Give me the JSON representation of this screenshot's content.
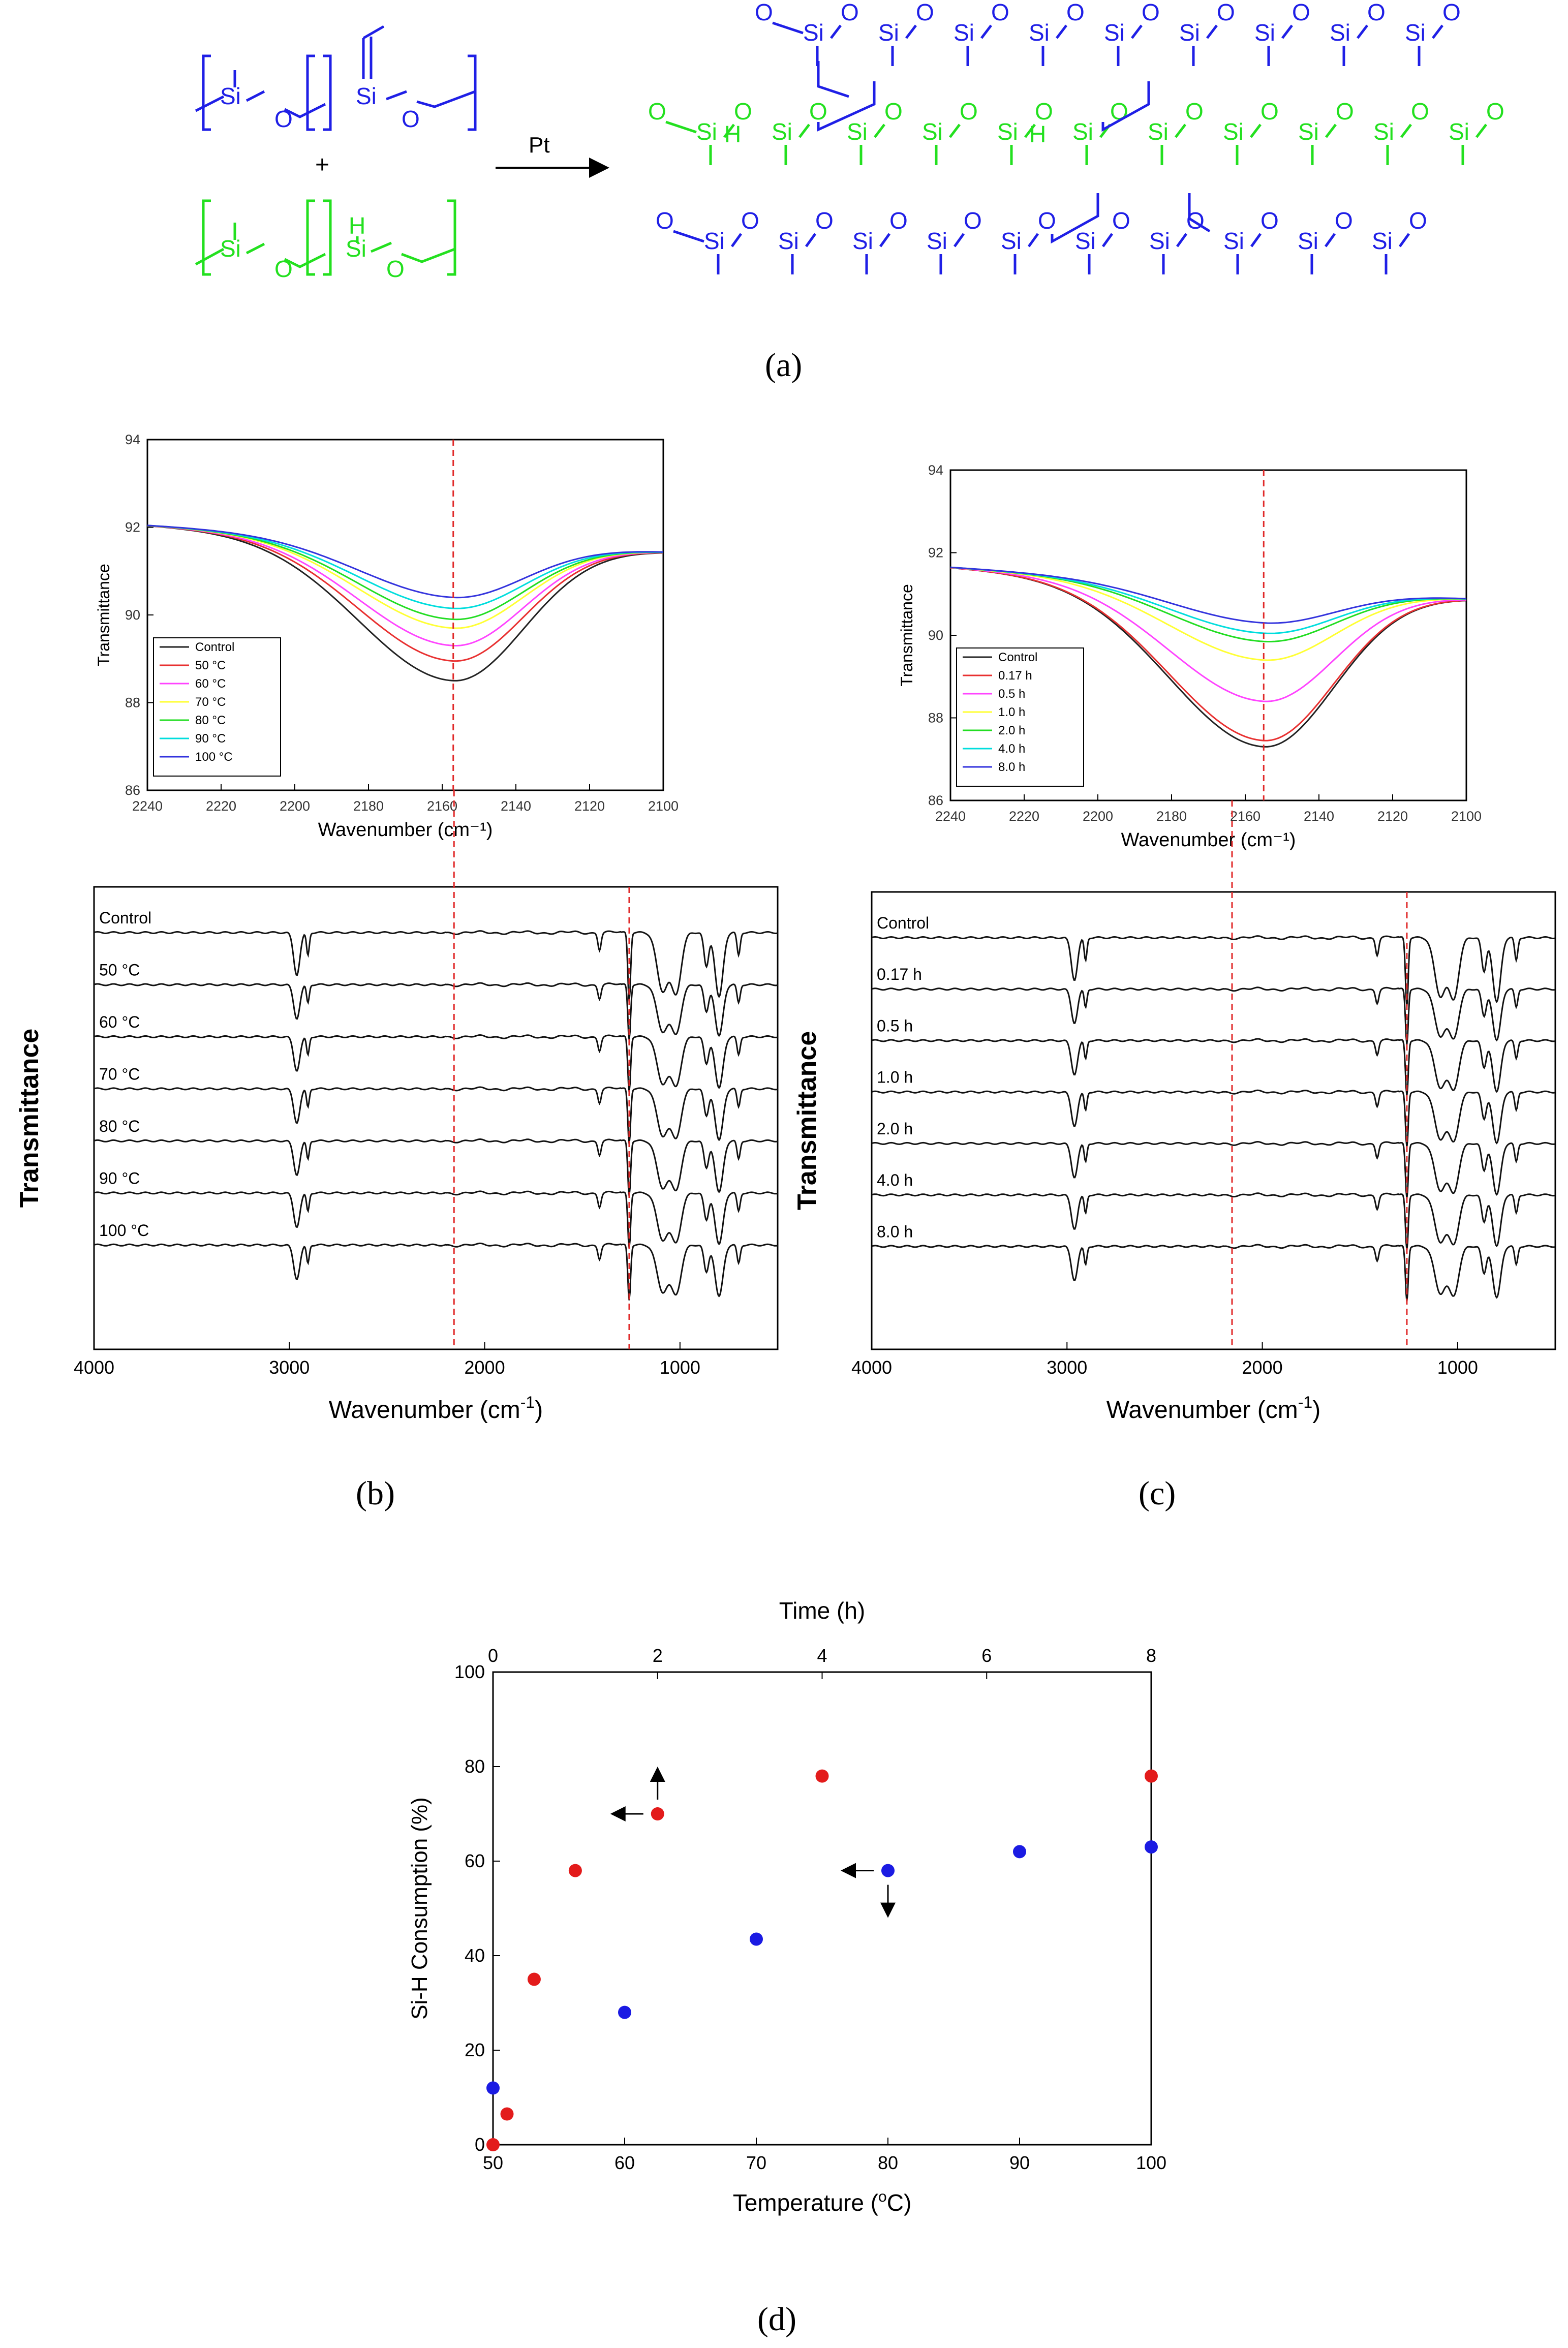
{
  "colors": {
    "silicone_blue": "#1f1fe6",
    "hydride_green": "#23e01f",
    "guide_red": "#e02a2a",
    "temp_series": [
      "#222222",
      "#e83030",
      "#ff44ff",
      "#ffff33",
      "#22dd22",
      "#00dddd",
      "#3333dd"
    ],
    "time_series": [
      "#222222",
      "#e83030",
      "#ff44ff",
      "#ffff33",
      "#22dd22",
      "#00dddd",
      "#3333dd"
    ],
    "dot_red": "#e31b1b",
    "dot_blue": "#1b1be3"
  },
  "panel_labels": {
    "a": "(a)",
    "b": "(b)",
    "c": "(c)",
    "d": "(d)"
  },
  "scheme": {
    "catalyst": "Pt",
    "plus": "+",
    "atoms": {
      "si": "Si",
      "o": "O",
      "h": "H"
    }
  },
  "chart_data": [
    {
      "id": "b_inset",
      "type": "line",
      "xlabel": "Wavenumber (cm⁻¹)",
      "ylabel": "Transmittance",
      "xlim": [
        2240,
        2100
      ],
      "ylim": [
        86,
        94
      ],
      "xticks": [
        "2240",
        "2220",
        "2200",
        "2180",
        "2160",
        "2140",
        "2120",
        "2100"
      ],
      "yticks": [
        "86",
        "88",
        "90",
        "92",
        "94"
      ],
      "guide_x": 2157,
      "dip_center": 2157,
      "legend_position": "bottom-left",
      "series": [
        {
          "name": "Control",
          "min": 88.5,
          "start": 92.05,
          "end": 91.45
        },
        {
          "name": "50 °C",
          "min": 88.95,
          "start": 92.05,
          "end": 91.45
        },
        {
          "name": "60 °C",
          "min": 89.3,
          "start": 92.05,
          "end": 91.45
        },
        {
          "name": "70 °C",
          "min": 89.7,
          "start": 92.05,
          "end": 91.45
        },
        {
          "name": "80 °C",
          "min": 89.9,
          "start": 92.05,
          "end": 91.45
        },
        {
          "name": "90 °C",
          "min": 90.15,
          "start": 92.05,
          "end": 91.45
        },
        {
          "name": "100 °C",
          "min": 90.4,
          "start": 92.05,
          "end": 91.45
        }
      ]
    },
    {
      "id": "c_inset",
      "type": "line",
      "xlabel": "Wavenumber (cm⁻¹)",
      "ylabel": "Transmittance",
      "xlim": [
        2240,
        2100
      ],
      "ylim": [
        86,
        94
      ],
      "xticks": [
        "2240",
        "2220",
        "2200",
        "2180",
        "2160",
        "2140",
        "2120",
        "2100"
      ],
      "yticks": [
        "86",
        "88",
        "90",
        "92",
        "94"
      ],
      "guide_x": 2155,
      "dip_center": 2155,
      "legend_position": "bottom-left",
      "series": [
        {
          "name": "Control",
          "min": 87.3,
          "start": 91.65,
          "end": 90.9
        },
        {
          "name": "0.17 h",
          "min": 87.45,
          "start": 91.65,
          "end": 90.9
        },
        {
          "name": "0.5 h",
          "min": 88.4,
          "start": 91.65,
          "end": 90.9
        },
        {
          "name": "1.0 h",
          "min": 89.4,
          "start": 91.65,
          "end": 90.9
        },
        {
          "name": "2.0 h",
          "min": 89.85,
          "start": 91.65,
          "end": 90.9
        },
        {
          "name": "4.0 h",
          "min": 90.05,
          "start": 91.65,
          "end": 90.9
        },
        {
          "name": "8.0 h",
          "min": 90.3,
          "start": 91.65,
          "end": 90.9
        }
      ]
    },
    {
      "id": "b_full",
      "type": "line",
      "xlabel": "Wavenumber (cm",
      "xlabel_sup": "-1",
      "xlabel_close": ")",
      "ylabel": "Transmittance",
      "xlim": [
        4000,
        500
      ],
      "xticks": [
        "4000",
        "3000",
        "2000",
        "1000"
      ],
      "guides_x": [
        2157,
        1260
      ],
      "series_names": [
        "Control",
        "50 °C",
        "60 °C",
        "70 °C",
        "80 °C",
        "90 °C",
        "100 °C"
      ]
    },
    {
      "id": "c_full",
      "type": "line",
      "xlabel": "Wavenumber (cm",
      "xlabel_sup": "-1",
      "xlabel_close": ")",
      "ylabel": "Transmittance",
      "xlim": [
        4000,
        500
      ],
      "xticks": [
        "4000",
        "3000",
        "2000",
        "1000"
      ],
      "guides_x": [
        2155,
        1260
      ],
      "series_names": [
        "Control",
        "0.17 h",
        "0.5 h",
        "1.0 h",
        "2.0 h",
        "4.0 h",
        "8.0 h"
      ]
    },
    {
      "id": "d",
      "type": "scatter",
      "title_top": "Time (h)",
      "xlabel": "Temperature (",
      "xlabel_sup": "o",
      "xlabel_close": "C)",
      "ylabel": "Si-H Consumption (%)",
      "xlim": [
        50,
        100
      ],
      "x2lim": [
        0,
        8
      ],
      "ylim": [
        0,
        100
      ],
      "xticks": [
        "50",
        "60",
        "70",
        "80",
        "90",
        "100"
      ],
      "x2ticks": [
        "0",
        "2",
        "4",
        "6",
        "8"
      ],
      "yticks": [
        "0",
        "20",
        "40",
        "60",
        "80",
        "100"
      ],
      "series": [
        {
          "name": "time",
          "axis": "top",
          "color": "red",
          "x": [
            0,
            0.17,
            0.5,
            1.0,
            2.0,
            4.0,
            8.0
          ],
          "y": [
            0,
            6.5,
            35,
            58,
            70,
            78,
            78
          ]
        },
        {
          "name": "temperature",
          "axis": "bottom",
          "color": "blue",
          "x": [
            50,
            60,
            70,
            80,
            90,
            100
          ],
          "y": [
            12,
            28,
            43.5,
            58,
            62,
            63
          ]
        }
      ]
    }
  ]
}
